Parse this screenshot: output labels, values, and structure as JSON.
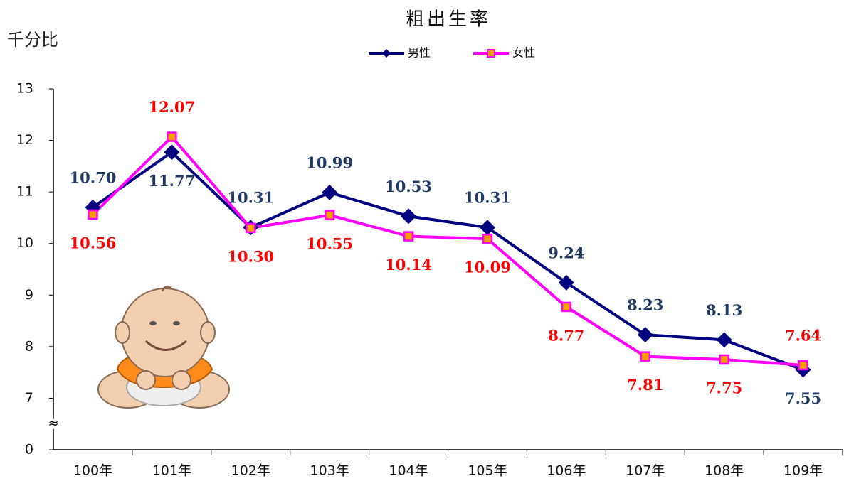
{
  "chart_data": {
    "type": "line",
    "title": "粗出生率",
    "y_label": "千分比",
    "categories": [
      "100年",
      "101年",
      "102年",
      "103年",
      "104年",
      "105年",
      "106年",
      "107年",
      "108年",
      "109年"
    ],
    "series": [
      {
        "name": "男性",
        "color": "#000080",
        "marker": "diamond",
        "label_color": "#1f3864",
        "values": [
          10.7,
          11.77,
          10.31,
          10.99,
          10.53,
          10.31,
          9.24,
          8.23,
          8.13,
          7.55
        ],
        "value_labels": [
          "10.70",
          "11.77",
          "10.31",
          "10.99",
          "10.53",
          "10.31",
          "9.24",
          "8.23",
          "8.13",
          "7.55"
        ]
      },
      {
        "name": "女性",
        "color": "#ff00ff",
        "marker": "square",
        "marker_fill": "#ff9900",
        "label_color": "#ff0000",
        "values": [
          10.56,
          12.07,
          10.3,
          10.55,
          10.14,
          10.09,
          8.77,
          7.81,
          7.75,
          7.64
        ],
        "value_labels": [
          "10.56",
          "12.07",
          "10.30",
          "10.55",
          "10.14",
          "10.09",
          "8.77",
          "7.81",
          "7.75",
          "7.64"
        ]
      }
    ],
    "ylim": [
      0,
      13
    ],
    "yticks": [
      0,
      7,
      8,
      9,
      10,
      11,
      12,
      13
    ],
    "axis_break_symbol": "≈"
  }
}
